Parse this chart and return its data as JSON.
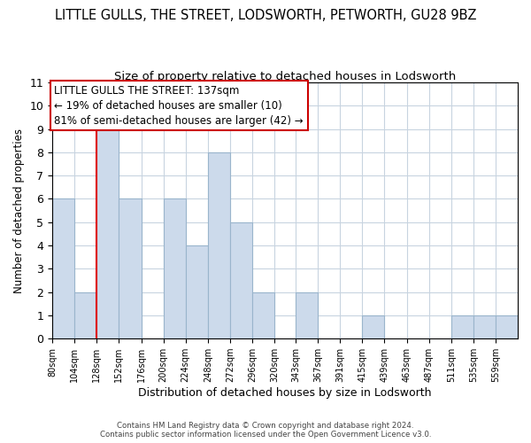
{
  "title": "LITTLE GULLS, THE STREET, LODSWORTH, PETWORTH, GU28 9BZ",
  "subtitle": "Size of property relative to detached houses in Lodsworth",
  "xlabel": "Distribution of detached houses by size in Lodsworth",
  "ylabel": "Number of detached properties",
  "bar_color": "#ccdaeb",
  "bar_edgecolor": "#9ab5cc",
  "xtick_positions": [
    80,
    104,
    128,
    152,
    176,
    200,
    224,
    248,
    272,
    296,
    320,
    343,
    367,
    391,
    415,
    439,
    463,
    487,
    511,
    535,
    559
  ],
  "bar_heights": [
    6,
    2,
    9,
    6,
    0,
    6,
    4,
    8,
    5,
    2,
    0,
    2,
    0,
    0,
    1,
    0,
    0,
    0,
    1,
    1,
    1
  ],
  "xtick_labels": [
    "80sqm",
    "104sqm",
    "128sqm",
    "152sqm",
    "176sqm",
    "200sqm",
    "224sqm",
    "248sqm",
    "272sqm",
    "296sqm",
    "320sqm",
    "343sqm",
    "367sqm",
    "391sqm",
    "415sqm",
    "439sqm",
    "463sqm",
    "487sqm",
    "511sqm",
    "535sqm",
    "559sqm"
  ],
  "ylim": [
    0,
    11
  ],
  "yticks": [
    0,
    1,
    2,
    3,
    4,
    5,
    6,
    7,
    8,
    9,
    10,
    11
  ],
  "vline_x": 128,
  "vline_color": "#dd0000",
  "annotation_line1": "LITTLE GULLS THE STREET: 137sqm",
  "annotation_line2": "← 19% of detached houses are smaller (10)",
  "annotation_line3": "81% of semi-detached houses are larger (42) →",
  "annotation_box_edgecolor": "#cc0000",
  "annotation_fontsize": 8.5,
  "footer_text": "Contains HM Land Registry data © Crown copyright and database right 2024.\nContains public sector information licensed under the Open Government Licence v3.0.",
  "grid_color": "#c8d4e0",
  "title_fontsize": 10.5,
  "subtitle_fontsize": 9.5,
  "xlabel_fontsize": 9,
  "ylabel_fontsize": 8.5
}
